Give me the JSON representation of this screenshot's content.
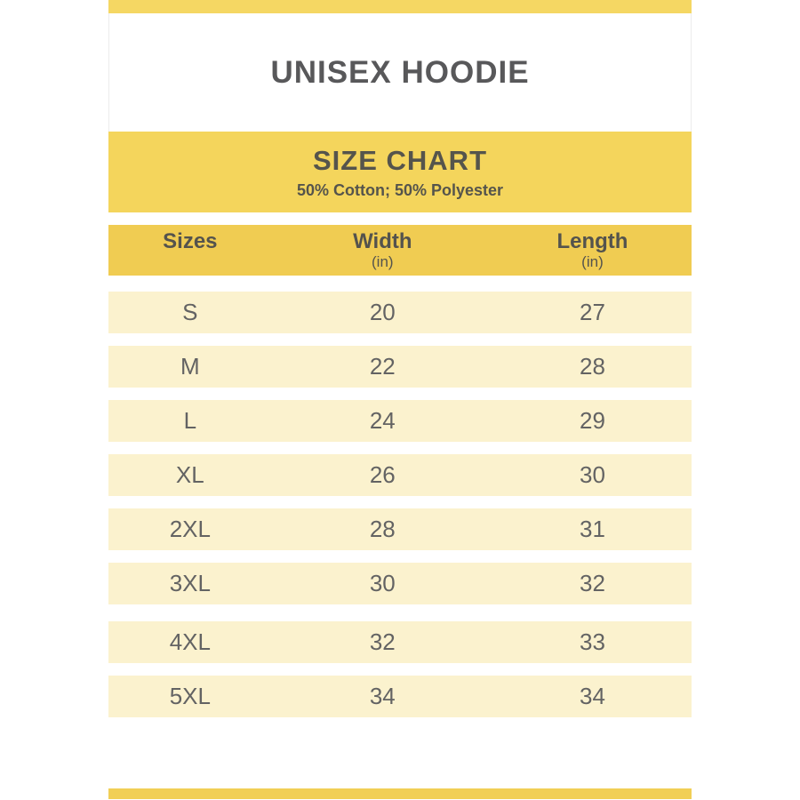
{
  "product": {
    "title": "UNISEX HOODIE"
  },
  "banner": {
    "title": "SIZE CHART",
    "subtitle": "50% Cotton; 50% Polyester"
  },
  "table": {
    "columns": [
      {
        "label": "Sizes",
        "unit": ""
      },
      {
        "label": "Width",
        "unit": "(in)"
      },
      {
        "label": "Length",
        "unit": "(in)"
      }
    ],
    "rows": [
      {
        "size": "S",
        "width": "20",
        "length": "27"
      },
      {
        "size": "M",
        "width": "22",
        "length": "28"
      },
      {
        "size": "L",
        "width": "24",
        "length": "29"
      },
      {
        "size": "XL",
        "width": "26",
        "length": "30"
      },
      {
        "size": "2XL",
        "width": "28",
        "length": "31"
      },
      {
        "size": "3XL",
        "width": "30",
        "length": "32"
      },
      {
        "size": "4XL",
        "width": "32",
        "length": "33"
      },
      {
        "size": "5XL",
        "width": "34",
        "length": "34"
      }
    ]
  },
  "colors": {
    "accent_yellow": "#F4D55C",
    "top_bar_yellow": "#F5D763",
    "header_yellow": "#F0CC52",
    "row_cream": "#FBF2CE",
    "bottom_bar_yellow": "#F1CF55",
    "heading_text": "#58585a",
    "band_text": "#55544c",
    "row_text": "#636363"
  }
}
